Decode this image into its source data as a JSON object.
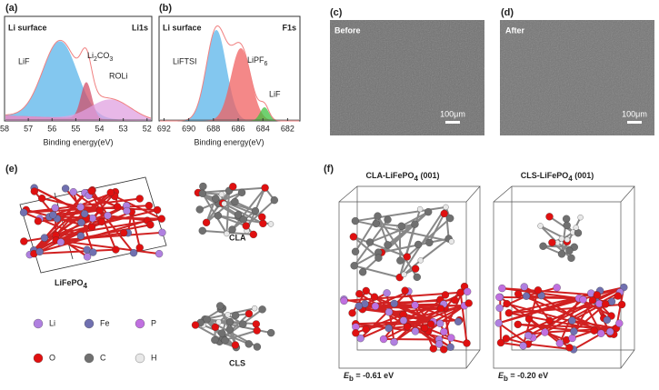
{
  "panels": {
    "a": {
      "label": "(a)",
      "sample": "Li surface",
      "element": "Li1s",
      "xlabel": "Binding energy(eV)",
      "xlim": [
        58,
        51.8
      ],
      "xticks": [
        58,
        57,
        56,
        55,
        54,
        53,
        52
      ],
      "peaks": {
        "lif": "LiF",
        "li2co3": [
          "Li",
          "2",
          "CO",
          "3"
        ],
        "roli": "ROLi"
      }
    },
    "b": {
      "label": "(b)",
      "sample": "Li surface",
      "element": "F1s",
      "xlabel": "Binding energy(eV)",
      "xlim": [
        692.4,
        681
      ],
      "xticks": [
        692,
        690,
        688,
        686,
        684,
        682
      ],
      "peaks": {
        "liftsi": "LiFTSI",
        "lipf6": [
          "LiPF",
          "6"
        ],
        "lif": "LiF"
      }
    },
    "c": {
      "label": "(c)",
      "caption": "Before",
      "scale": "100μm"
    },
    "d": {
      "label": "(d)",
      "caption": "After",
      "scale": "100μm"
    },
    "e": {
      "label": "(e)",
      "structure": [
        "LiFePO",
        "4"
      ],
      "molecules": [
        "CLA",
        "CLS"
      ],
      "legend": [
        "Li",
        "Fe",
        "P",
        "O",
        "C",
        "H"
      ]
    },
    "f": {
      "label": "(f)",
      "models": [
        {
          "title": [
            "CLA-LiFePO",
            "4",
            " (001)"
          ],
          "energy": [
            "E",
            "b",
            " = -0.61 eV"
          ]
        },
        {
          "title": [
            "CLS-LiFePO",
            "4",
            " (001)"
          ],
          "energy": [
            "E",
            "b",
            " = -0.20 eV"
          ]
        }
      ]
    }
  }
}
